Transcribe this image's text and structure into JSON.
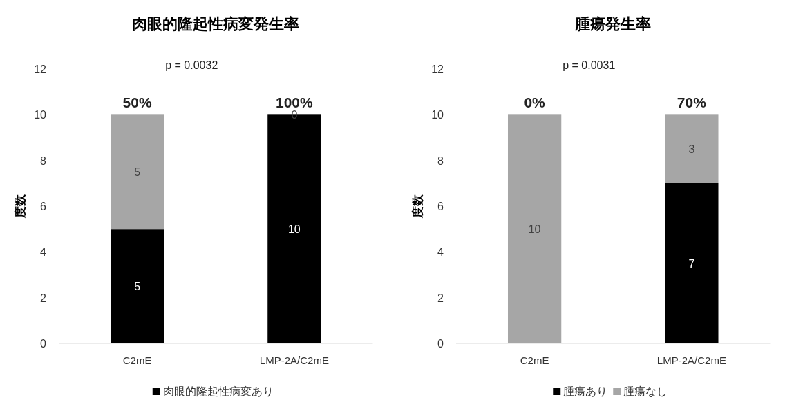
{
  "chart_data": [
    {
      "type": "bar",
      "stacked": true,
      "title": "肉眼的隆起性病変発生率",
      "ylabel": "度数",
      "categories": [
        "C2mE",
        "LMP-2A/C2mE"
      ],
      "ylim": [
        0,
        12
      ],
      "yticks": [
        0,
        2,
        4,
        6,
        8,
        10,
        12
      ],
      "legend": "bottom",
      "series": [
        {
          "name": "肉眼的隆起性病変あり",
          "color": "#000000",
          "values": [
            5,
            10
          ],
          "value_labels": [
            "5",
            "10"
          ]
        },
        {
          "color": "#a6a6a6",
          "values": [
            5,
            0
          ],
          "value_labels": [
            "5",
            "0"
          ]
        }
      ],
      "annotations": [
        "p = 0.0032",
        {
          "text": "50%",
          "x": "C2mE",
          "y": 10
        },
        {
          "text": "100%",
          "x": "LMP-2A/C2mE",
          "y": 10
        }
      ]
    },
    {
      "type": "bar",
      "stacked": true,
      "title": "腫瘍発生率",
      "ylabel": "度数",
      "categories": [
        "C2mE",
        "LMP-2A/C2mE"
      ],
      "ylim": [
        0,
        12
      ],
      "yticks": [
        0,
        2,
        4,
        6,
        8,
        10,
        12
      ],
      "legend": "bottom",
      "series": [
        {
          "name": "腫瘍あり",
          "color": "#000000",
          "values": [
            0,
            7
          ],
          "value_labels": [
            null,
            "7"
          ]
        },
        {
          "name": "腫瘍なし",
          "color": "#a6a6a6",
          "values": [
            10,
            3
          ],
          "value_labels": [
            "10",
            "3"
          ]
        }
      ],
      "annotations": [
        "p = 0.0031",
        {
          "text": "0%",
          "x": "C2mE",
          "y": 10
        },
        {
          "text": "70%",
          "x": "LMP-2A/C2mE",
          "y": 10
        }
      ]
    }
  ]
}
